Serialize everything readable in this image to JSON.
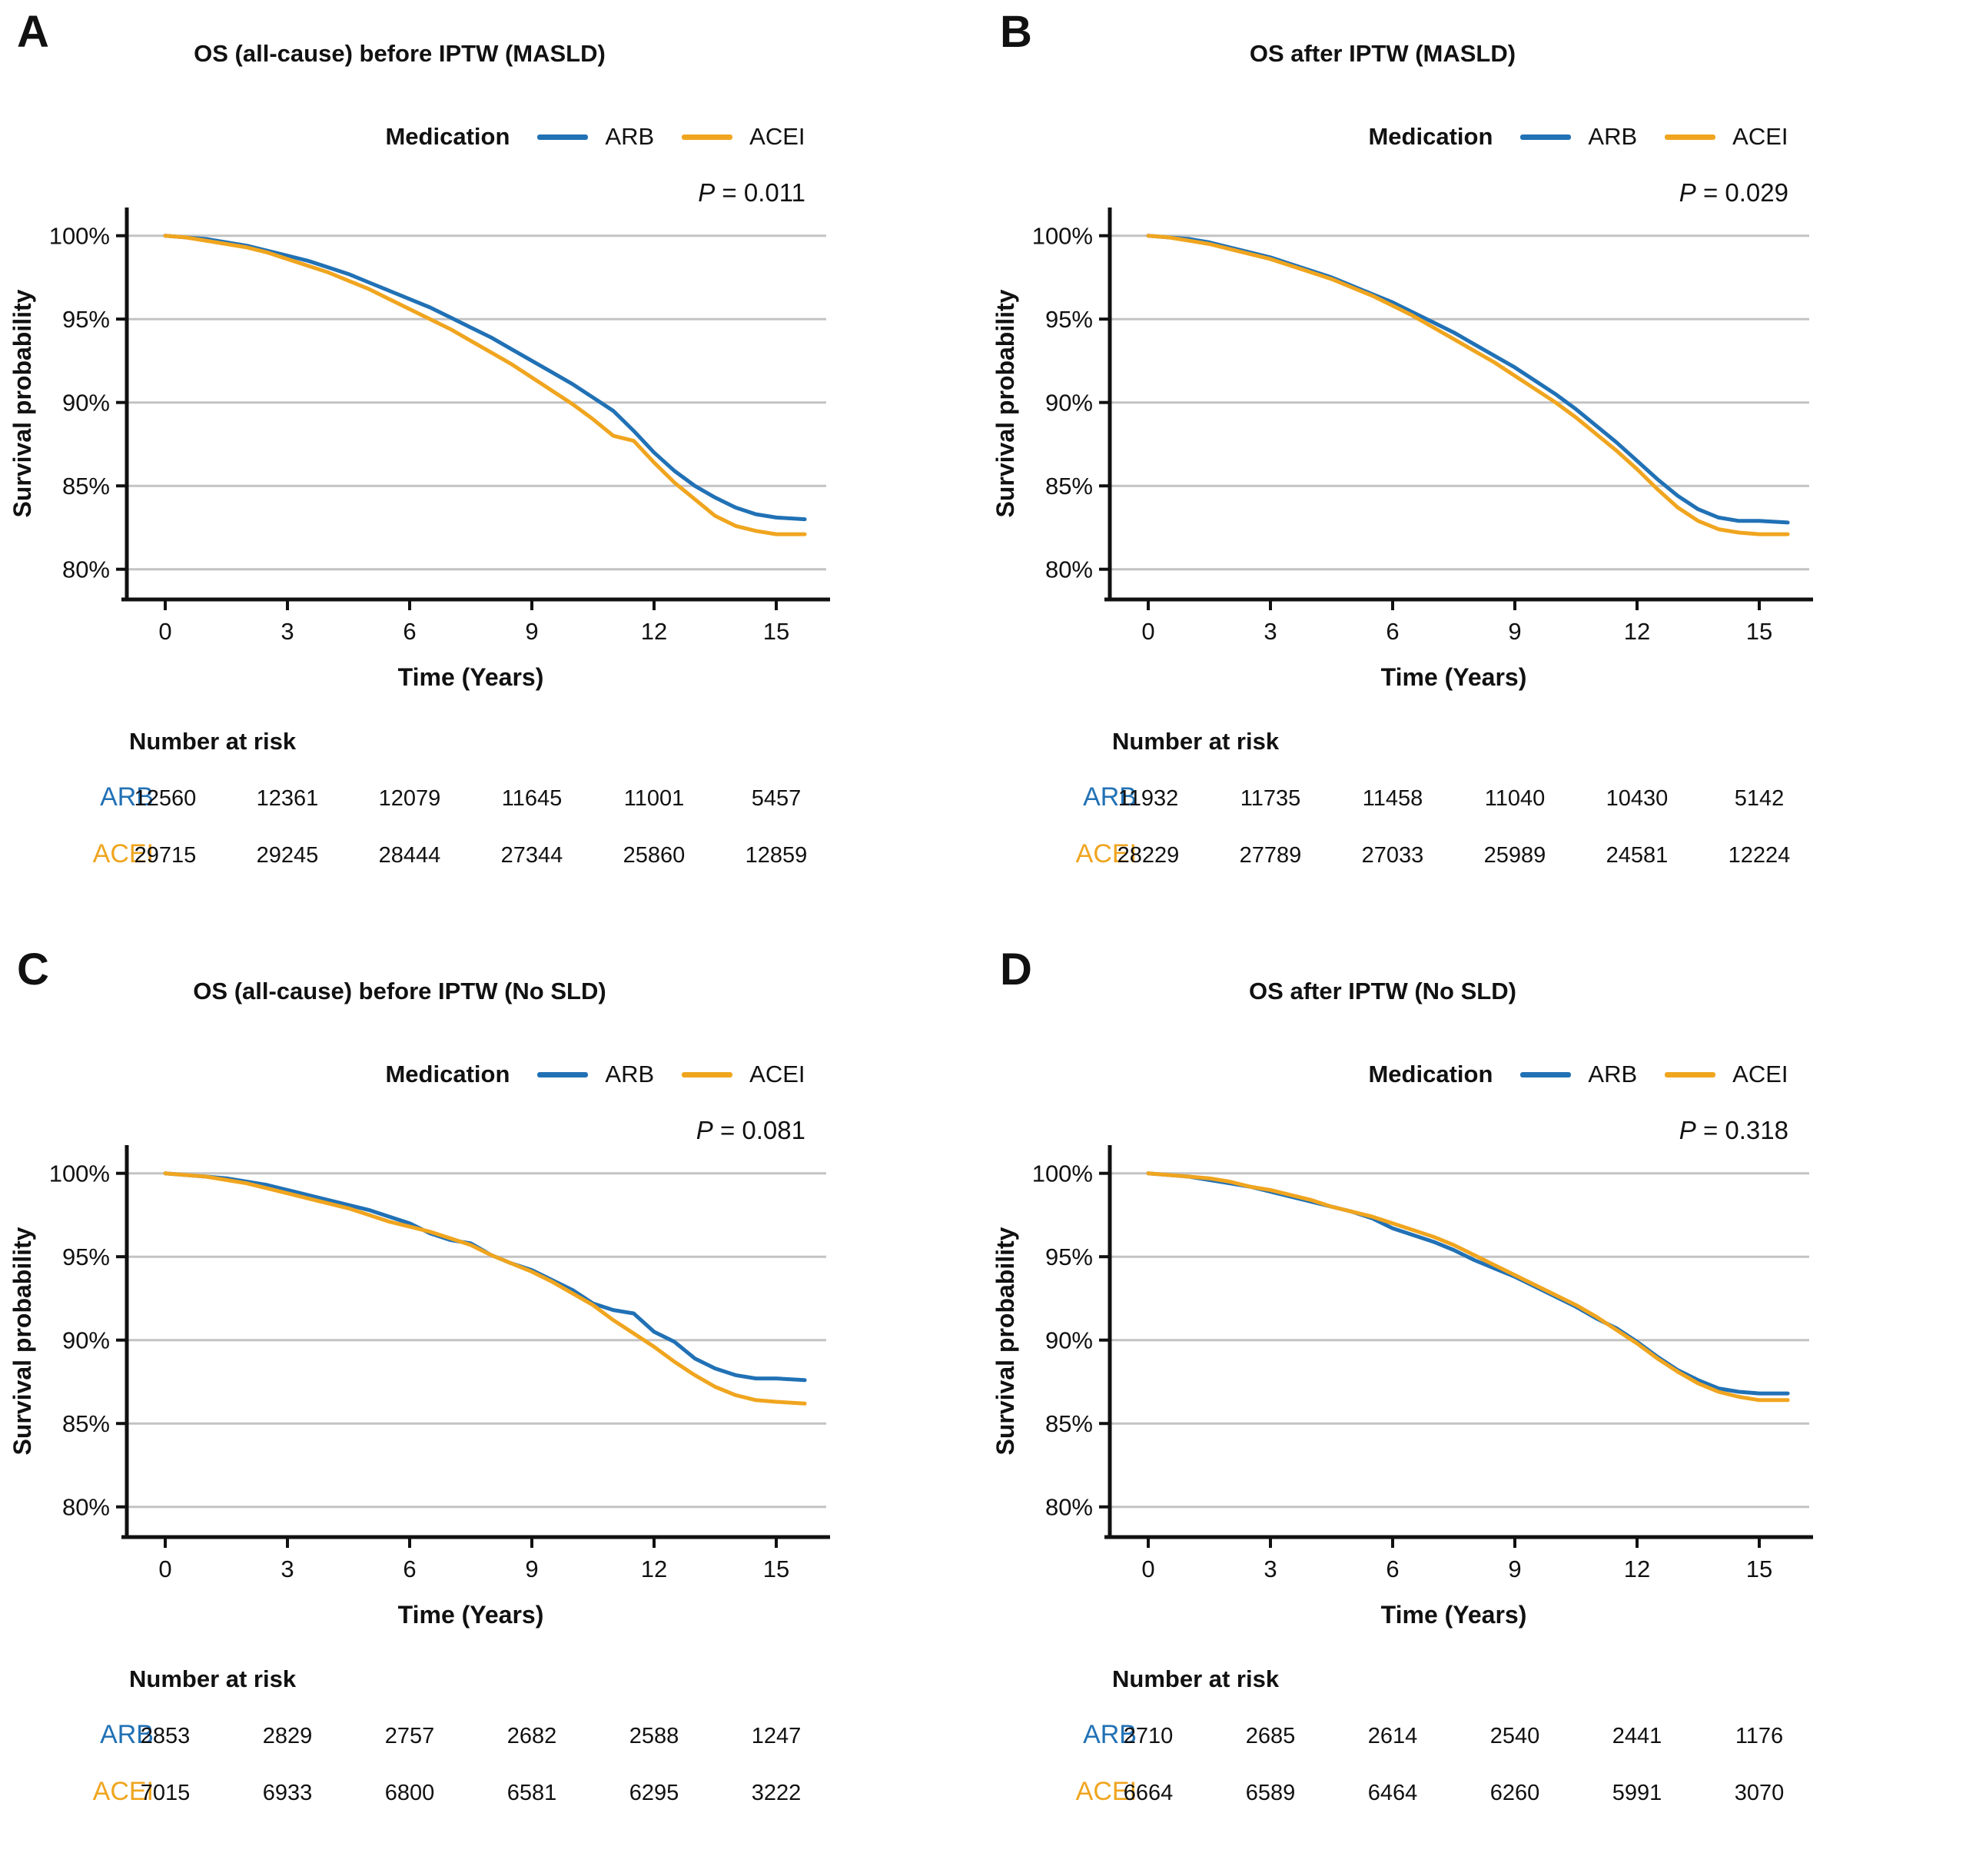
{
  "figure": {
    "background": "#ffffff",
    "grid_color": "#c3c3c3",
    "axis_color": "#111111"
  },
  "panels": [
    {
      "letter": "A"
    },
    {
      "letter": "B"
    },
    {
      "letter": "C"
    },
    {
      "letter": "D"
    }
  ],
  "chart_data": [
    {
      "type": "line",
      "title": "OS (all-cause) before IPTW (MASLD)",
      "p_value": "P = 0.011",
      "legend_title": "Medication",
      "legend_position": "top",
      "xlabel": "Time (Years)",
      "ylabel": "Survival probability",
      "xlim": [
        0,
        15.7
      ],
      "ylim": [
        80,
        100
      ],
      "x_ticks": [
        0,
        3,
        6,
        9,
        12,
        15
      ],
      "y_ticks": [
        100,
        95,
        90,
        85,
        80
      ],
      "y_tick_labels": [
        "100%",
        "95%",
        "90%",
        "85%",
        "80%"
      ],
      "grid": "horizontal",
      "series": [
        {
          "name": "ARB",
          "color": "#2171b5",
          "x": [
            0,
            0.5,
            1,
            1.5,
            2,
            2.5,
            3,
            3.5,
            4,
            4.5,
            5,
            5.5,
            6,
            6.5,
            7,
            7.5,
            8,
            8.5,
            9,
            9.5,
            10,
            10.5,
            11,
            11.5,
            12,
            12.5,
            13,
            13.5,
            14,
            14.5,
            15,
            15.7
          ],
          "y": [
            100,
            99.9,
            99.8,
            99.6,
            99.4,
            99.1,
            98.8,
            98.5,
            98.1,
            97.7,
            97.2,
            96.7,
            96.2,
            95.7,
            95.1,
            94.5,
            93.9,
            93.2,
            92.5,
            91.8,
            91.1,
            90.3,
            89.5,
            88.3,
            87.0,
            85.9,
            85.0,
            84.3,
            83.7,
            83.3,
            83.1,
            83.0
          ]
        },
        {
          "name": "ACEI",
          "color": "#f0a51f",
          "x": [
            0,
            0.5,
            1,
            1.5,
            2,
            2.5,
            3,
            3.5,
            4,
            4.5,
            5,
            5.5,
            6,
            6.5,
            7,
            7.5,
            8,
            8.5,
            9,
            9.5,
            10,
            10.5,
            11,
            11.5,
            12,
            12.5,
            13,
            13.5,
            14,
            14.5,
            15,
            15.7
          ],
          "y": [
            100,
            99.9,
            99.7,
            99.5,
            99.3,
            99.0,
            98.6,
            98.2,
            97.8,
            97.3,
            96.8,
            96.2,
            95.6,
            95.0,
            94.4,
            93.7,
            93.0,
            92.3,
            91.5,
            90.7,
            89.9,
            89.0,
            88.0,
            87.7,
            86.4,
            85.2,
            84.2,
            83.2,
            82.6,
            82.3,
            82.1,
            82.1
          ]
        }
      ],
      "number_at_risk": {
        "title": "Number at risk",
        "times": [
          0,
          3,
          6,
          9,
          12,
          15
        ],
        "rows": [
          {
            "name": "ARB",
            "color": "#2171b5",
            "values": [
              "12560",
              "12361",
              "12079",
              "11645",
              "11001",
              "5457"
            ]
          },
          {
            "name": "ACEI",
            "color": "#f0a51f",
            "values": [
              "29715",
              "29245",
              "28444",
              "27344",
              "25860",
              "12859"
            ]
          }
        ]
      }
    },
    {
      "type": "line",
      "title": "OS after IPTW (MASLD)",
      "p_value": "P = 0.029",
      "legend_title": "Medication",
      "legend_position": "top",
      "xlabel": "Time (Years)",
      "ylabel": "Survival probability",
      "xlim": [
        0,
        15.7
      ],
      "ylim": [
        80,
        100
      ],
      "x_ticks": [
        0,
        3,
        6,
        9,
        12,
        15
      ],
      "y_ticks": [
        100,
        95,
        90,
        85,
        80
      ],
      "y_tick_labels": [
        "100%",
        "95%",
        "90%",
        "85%",
        "80%"
      ],
      "grid": "horizontal",
      "series": [
        {
          "name": "ARB",
          "color": "#2171b5",
          "x": [
            0,
            0.5,
            1,
            1.5,
            2,
            2.5,
            3,
            3.5,
            4,
            4.5,
            5,
            5.5,
            6,
            6.5,
            7,
            7.5,
            8,
            8.5,
            9,
            9.5,
            10,
            10.5,
            11,
            11.5,
            12,
            12.5,
            13,
            13.5,
            14,
            14.5,
            15,
            15.7
          ],
          "y": [
            100,
            99.9,
            99.8,
            99.6,
            99.3,
            99.0,
            98.7,
            98.3,
            97.9,
            97.5,
            97.0,
            96.5,
            96.0,
            95.4,
            94.8,
            94.2,
            93.5,
            92.8,
            92.1,
            91.3,
            90.5,
            89.6,
            88.6,
            87.6,
            86.5,
            85.4,
            84.4,
            83.6,
            83.1,
            82.9,
            82.9,
            82.8
          ]
        },
        {
          "name": "ACEI",
          "color": "#f0a51f",
          "x": [
            0,
            0.5,
            1,
            1.5,
            2,
            2.5,
            3,
            3.5,
            4,
            4.5,
            5,
            5.5,
            6,
            6.5,
            7,
            7.5,
            8,
            8.5,
            9,
            9.5,
            10,
            10.5,
            11,
            11.5,
            12,
            12.5,
            13,
            13.5,
            14,
            14.5,
            15,
            15.7
          ],
          "y": [
            100,
            99.9,
            99.7,
            99.5,
            99.2,
            98.9,
            98.6,
            98.2,
            97.8,
            97.4,
            96.9,
            96.4,
            95.8,
            95.2,
            94.5,
            93.8,
            93.1,
            92.4,
            91.6,
            90.8,
            90.0,
            89.1,
            88.1,
            87.1,
            86.0,
            84.8,
            83.7,
            82.9,
            82.4,
            82.2,
            82.1,
            82.1
          ]
        }
      ],
      "number_at_risk": {
        "title": "Number at risk",
        "times": [
          0,
          3,
          6,
          9,
          12,
          15
        ],
        "rows": [
          {
            "name": "ARB",
            "color": "#2171b5",
            "values": [
              "11932",
              "11735",
              "11458",
              "11040",
              "10430",
              "5142"
            ]
          },
          {
            "name": "ACEI",
            "color": "#f0a51f",
            "values": [
              "28229",
              "27789",
              "27033",
              "25989",
              "24581",
              "12224"
            ]
          }
        ]
      }
    },
    {
      "type": "line",
      "title": "OS (all-cause) before IPTW (No SLD)",
      "p_value": "P = 0.081",
      "legend_title": "Medication",
      "legend_position": "top",
      "xlabel": "Time (Years)",
      "ylabel": "Survival probability",
      "xlim": [
        0,
        15.7
      ],
      "ylim": [
        80,
        100
      ],
      "x_ticks": [
        0,
        3,
        6,
        9,
        12,
        15
      ],
      "y_ticks": [
        100,
        95,
        90,
        85,
        80
      ],
      "y_tick_labels": [
        "100%",
        "95%",
        "90%",
        "85%",
        "80%"
      ],
      "grid": "horizontal",
      "series": [
        {
          "name": "ARB",
          "color": "#2171b5",
          "x": [
            0,
            0.5,
            1,
            1.5,
            2,
            2.5,
            3,
            3.5,
            4,
            4.5,
            5,
            5.5,
            6,
            6.5,
            7,
            7.5,
            8,
            8.5,
            9,
            9.5,
            10,
            10.5,
            11,
            11.5,
            12,
            12.5,
            13,
            13.5,
            14,
            14.5,
            15,
            15.7
          ],
          "y": [
            100,
            99.9,
            99.8,
            99.7,
            99.5,
            99.3,
            99.0,
            98.7,
            98.4,
            98.1,
            97.8,
            97.4,
            97.0,
            96.4,
            96.0,
            95.8,
            95.1,
            94.6,
            94.2,
            93.6,
            93.0,
            92.2,
            91.8,
            91.6,
            90.5,
            89.9,
            88.9,
            88.3,
            87.9,
            87.7,
            87.7,
            87.6
          ]
        },
        {
          "name": "ACEI",
          "color": "#f0a51f",
          "x": [
            0,
            0.5,
            1,
            1.5,
            2,
            2.5,
            3,
            3.5,
            4,
            4.5,
            5,
            5.5,
            6,
            6.5,
            7,
            7.5,
            8,
            8.5,
            9,
            9.5,
            10,
            10.5,
            11,
            11.5,
            12,
            12.5,
            13,
            13.5,
            14,
            14.5,
            15,
            15.7
          ],
          "y": [
            100,
            99.9,
            99.8,
            99.6,
            99.4,
            99.1,
            98.8,
            98.5,
            98.2,
            97.9,
            97.5,
            97.1,
            96.8,
            96.5,
            96.1,
            95.7,
            95.1,
            94.6,
            94.1,
            93.5,
            92.8,
            92.1,
            91.2,
            90.4,
            89.6,
            88.7,
            87.9,
            87.2,
            86.7,
            86.4,
            86.3,
            86.2
          ]
        }
      ],
      "number_at_risk": {
        "title": "Number at risk",
        "times": [
          0,
          3,
          6,
          9,
          12,
          15
        ],
        "rows": [
          {
            "name": "ARB",
            "color": "#2171b5",
            "values": [
              "2853",
              "2829",
              "2757",
              "2682",
              "2588",
              "1247"
            ]
          },
          {
            "name": "ACEI",
            "color": "#f0a51f",
            "values": [
              "7015",
              "6933",
              "6800",
              "6581",
              "6295",
              "3222"
            ]
          }
        ]
      }
    },
    {
      "type": "line",
      "title": "OS after IPTW (No SLD)",
      "p_value": "P = 0.318",
      "legend_title": "Medication",
      "legend_position": "top",
      "xlabel": "Time (Years)",
      "ylabel": "Survival probability",
      "xlim": [
        0,
        15.7
      ],
      "ylim": [
        80,
        100
      ],
      "x_ticks": [
        0,
        3,
        6,
        9,
        12,
        15
      ],
      "y_ticks": [
        100,
        95,
        90,
        85,
        80
      ],
      "y_tick_labels": [
        "100%",
        "95%",
        "90%",
        "85%",
        "80%"
      ],
      "grid": "horizontal",
      "series": [
        {
          "name": "ARB",
          "color": "#2171b5",
          "x": [
            0,
            0.5,
            1,
            1.5,
            2,
            2.5,
            3,
            3.5,
            4,
            4.5,
            5,
            5.5,
            6,
            6.5,
            7,
            7.5,
            8,
            8.5,
            9,
            9.5,
            10,
            10.5,
            11,
            11.5,
            12,
            12.5,
            13,
            13.5,
            14,
            14.5,
            15,
            15.7
          ],
          "y": [
            100,
            99.9,
            99.8,
            99.6,
            99.4,
            99.2,
            98.9,
            98.6,
            98.3,
            98.0,
            97.7,
            97.3,
            96.7,
            96.3,
            95.9,
            95.4,
            94.8,
            94.3,
            93.8,
            93.2,
            92.6,
            92.0,
            91.3,
            90.7,
            89.9,
            89.0,
            88.2,
            87.6,
            87.1,
            86.9,
            86.8,
            86.8
          ]
        },
        {
          "name": "ACEI",
          "color": "#f0a51f",
          "x": [
            0,
            0.5,
            1,
            1.5,
            2,
            2.5,
            3,
            3.5,
            4,
            4.5,
            5,
            5.5,
            6,
            6.5,
            7,
            7.5,
            8,
            8.5,
            9,
            9.5,
            10,
            10.5,
            11,
            11.5,
            12,
            12.5,
            13,
            13.5,
            14,
            14.5,
            15,
            15.7
          ],
          "y": [
            100,
            99.9,
            99.8,
            99.7,
            99.5,
            99.2,
            99.0,
            98.7,
            98.4,
            98.0,
            97.7,
            97.4,
            97.0,
            96.6,
            96.2,
            95.7,
            95.1,
            94.5,
            93.9,
            93.3,
            92.7,
            92.1,
            91.4,
            90.6,
            89.8,
            88.9,
            88.1,
            87.4,
            86.9,
            86.6,
            86.4,
            86.4
          ]
        }
      ],
      "number_at_risk": {
        "title": "Number at risk",
        "times": [
          0,
          3,
          6,
          9,
          12,
          15
        ],
        "rows": [
          {
            "name": "ARB",
            "color": "#2171b5",
            "values": [
              "2710",
              "2685",
              "2614",
              "2540",
              "2441",
              "1176"
            ]
          },
          {
            "name": "ACEI",
            "color": "#f0a51f",
            "values": [
              "6664",
              "6589",
              "6464",
              "6260",
              "5991",
              "3070"
            ]
          }
        ]
      }
    }
  ]
}
